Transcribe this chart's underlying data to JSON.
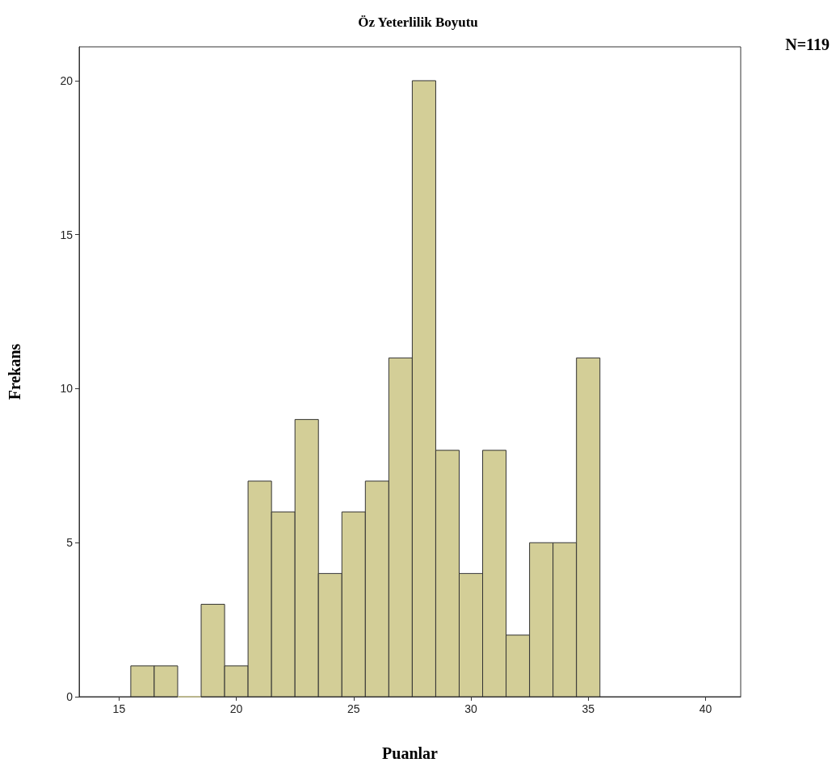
{
  "chart_data": {
    "type": "histogram",
    "title": "Öz Yeterlilik Boyutu",
    "xlabel": "Puanlar",
    "ylabel": "Frekans",
    "annotations": [
      "N=119"
    ],
    "bins": [
      15.5,
      16.5,
      17.5,
      18.5,
      19.5,
      20.5,
      21.5,
      22.5,
      23.5,
      24.5,
      25.5,
      26.5,
      27.5,
      28.5,
      29.5,
      30.5,
      31.5,
      32.5,
      33.5,
      34.5,
      35.5
    ],
    "values": [
      1,
      1,
      0,
      3,
      1,
      7,
      6,
      9,
      4,
      6,
      7,
      11,
      20,
      8,
      4,
      8,
      2,
      5,
      5,
      11
    ],
    "color": "#d3ce97",
    "xlim": [
      13.3,
      41.5
    ],
    "ylim": [
      0,
      21.1
    ],
    "xticks": [
      15,
      20,
      25,
      30,
      35,
      40
    ],
    "yticks": [
      0,
      5,
      10,
      15,
      20
    ]
  }
}
